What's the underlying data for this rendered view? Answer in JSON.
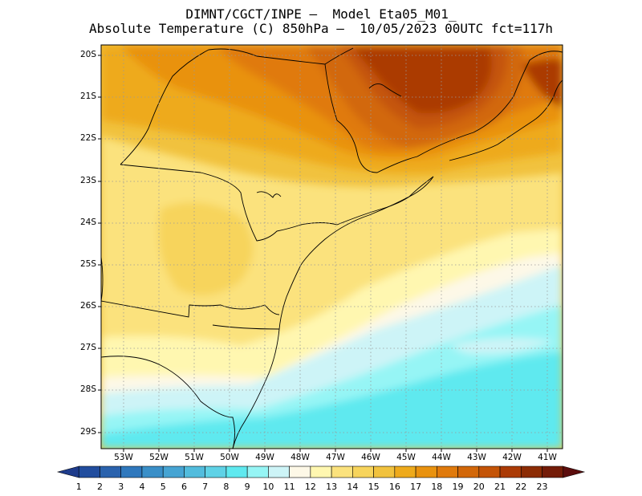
{
  "title": {
    "line1": "DIMNT/CGCT/INPE –  Model Eta05_M01_",
    "line2": "Absolute Temperature (C) 850hPa –  10/05/2023 00UTC fct=117h"
  },
  "map": {
    "lat_labels": [
      "20S",
      "21S",
      "22S",
      "23S",
      "24S",
      "25S",
      "26S",
      "27S",
      "28S",
      "29S"
    ],
    "lon_labels": [
      "53W",
      "52W",
      "51W",
      "50W",
      "49W",
      "48W",
      "47W",
      "46W",
      "45W",
      "44W",
      "43W",
      "42W",
      "41W"
    ]
  },
  "colorbar": {
    "labels": [
      "1",
      "2",
      "3",
      "4",
      "5",
      "6",
      "7",
      "8",
      "9",
      "10",
      "11",
      "12",
      "13",
      "14",
      "15",
      "16",
      "17",
      "18",
      "19",
      "20",
      "21",
      "22",
      "23"
    ],
    "colors": [
      "#1e3c8c",
      "#214d9e",
      "#2a62ad",
      "#2f78bd",
      "#3a8fc8",
      "#46a4d3",
      "#52bcdd",
      "#5fd2e6",
      "#5fe9ef",
      "#96f5f5",
      "#cdf4f7",
      "#fdf8e7",
      "#fff7b0",
      "#fbe27d",
      "#f7d45c",
      "#f1c23e",
      "#eeaa1c",
      "#e9920f",
      "#e07a0c",
      "#d26709",
      "#c45407",
      "#ab3b06",
      "#8c2c04",
      "#741c08",
      "#5c0d0d"
    ]
  }
}
